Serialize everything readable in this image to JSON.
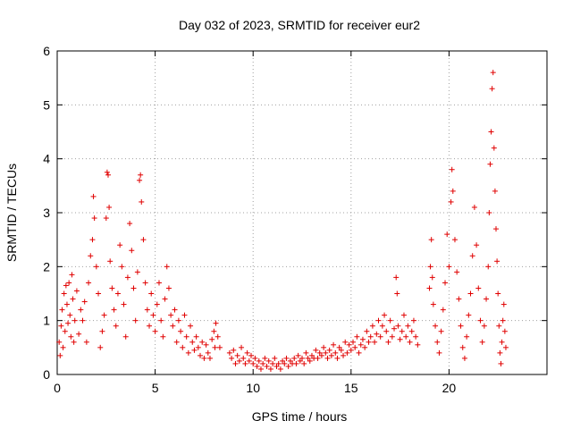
{
  "chart_data": {
    "type": "scatter",
    "title": "Day 032 of 2023, SRMTID for receiver eur2",
    "xlabel": "GPS time / hours",
    "ylabel": "SRMTID / TECUs",
    "xlim": [
      0,
      25
    ],
    "ylim": [
      0,
      6
    ],
    "xticks": [
      0,
      5,
      10,
      15,
      20
    ],
    "yticks": [
      0,
      1,
      2,
      3,
      4,
      5,
      6
    ],
    "grid": true,
    "marker": "+",
    "color": "#e00000",
    "series": [
      {
        "name": "SRMTID",
        "points": [
          [
            0.1,
            0.6
          ],
          [
            0.15,
            0.35
          ],
          [
            0.2,
            0.9
          ],
          [
            0.25,
            1.2
          ],
          [
            0.3,
            0.5
          ],
          [
            0.35,
            1.5
          ],
          [
            0.4,
            0.8
          ],
          [
            0.45,
            1.65
          ],
          [
            0.5,
            1.3
          ],
          [
            0.55,
            0.95
          ],
          [
            0.6,
            1.7
          ],
          [
            0.65,
            1.1
          ],
          [
            0.7,
            0.7
          ],
          [
            0.75,
            1.85
          ],
          [
            0.8,
            1.4
          ],
          [
            0.85,
            0.6
          ],
          [
            0.9,
            1.0
          ],
          [
            1.0,
            1.55
          ],
          [
            1.1,
            0.75
          ],
          [
            1.2,
            1.2
          ],
          [
            1.3,
            1.0
          ],
          [
            1.4,
            1.35
          ],
          [
            1.5,
            0.6
          ],
          [
            1.6,
            1.7
          ],
          [
            1.7,
            2.2
          ],
          [
            1.8,
            2.5
          ],
          [
            1.85,
            3.3
          ],
          [
            1.9,
            2.9
          ],
          [
            2.0,
            2.0
          ],
          [
            2.1,
            1.5
          ],
          [
            2.2,
            0.5
          ],
          [
            2.3,
            0.8
          ],
          [
            2.4,
            1.1
          ],
          [
            2.5,
            2.9
          ],
          [
            2.55,
            3.75
          ],
          [
            2.6,
            3.7
          ],
          [
            2.65,
            3.1
          ],
          [
            2.7,
            2.1
          ],
          [
            2.8,
            1.6
          ],
          [
            2.9,
            1.2
          ],
          [
            3.0,
            0.9
          ],
          [
            3.1,
            1.5
          ],
          [
            3.2,
            2.4
          ],
          [
            3.3,
            2.0
          ],
          [
            3.4,
            1.3
          ],
          [
            3.5,
            0.7
          ],
          [
            3.6,
            1.8
          ],
          [
            3.7,
            2.8
          ],
          [
            3.8,
            2.3
          ],
          [
            3.9,
            1.6
          ],
          [
            4.0,
            1.0
          ],
          [
            4.1,
            1.9
          ],
          [
            4.2,
            3.6
          ],
          [
            4.25,
            3.7
          ],
          [
            4.3,
            3.2
          ],
          [
            4.4,
            2.5
          ],
          [
            4.5,
            1.7
          ],
          [
            4.6,
            1.2
          ],
          [
            4.7,
            0.9
          ],
          [
            4.8,
            1.5
          ],
          [
            4.9,
            1.1
          ],
          [
            5.0,
            0.8
          ],
          [
            5.1,
            1.3
          ],
          [
            5.2,
            1.7
          ],
          [
            5.3,
            1.0
          ],
          [
            5.4,
            0.7
          ],
          [
            5.5,
            1.4
          ],
          [
            5.6,
            2.0
          ],
          [
            5.7,
            1.6
          ],
          [
            5.8,
            1.1
          ],
          [
            5.9,
            0.9
          ],
          [
            6.0,
            1.2
          ],
          [
            6.1,
            0.6
          ],
          [
            6.2,
            1.0
          ],
          [
            6.3,
            0.8
          ],
          [
            6.4,
            0.5
          ],
          [
            6.5,
            1.1
          ],
          [
            6.6,
            0.7
          ],
          [
            6.7,
            0.4
          ],
          [
            6.8,
            0.9
          ],
          [
            6.9,
            0.6
          ],
          [
            7.0,
            0.45
          ],
          [
            7.1,
            0.7
          ],
          [
            7.2,
            0.5
          ],
          [
            7.3,
            0.35
          ],
          [
            7.4,
            0.6
          ],
          [
            7.5,
            0.3
          ],
          [
            7.6,
            0.55
          ],
          [
            7.7,
            0.4
          ],
          [
            7.8,
            0.3
          ],
          [
            7.9,
            0.65
          ],
          [
            8.0,
            0.8
          ],
          [
            8.05,
            0.5
          ],
          [
            8.1,
            0.95
          ],
          [
            8.2,
            0.7
          ],
          [
            8.3,
            0.5
          ],
          [
            8.8,
            0.4
          ],
          [
            8.9,
            0.3
          ],
          [
            9.0,
            0.45
          ],
          [
            9.1,
            0.2
          ],
          [
            9.2,
            0.35
          ],
          [
            9.3,
            0.25
          ],
          [
            9.4,
            0.5
          ],
          [
            9.5,
            0.3
          ],
          [
            9.6,
            0.2
          ],
          [
            9.7,
            0.4
          ],
          [
            9.8,
            0.25
          ],
          [
            9.9,
            0.35
          ],
          [
            10.0,
            0.2
          ],
          [
            10.1,
            0.3
          ],
          [
            10.2,
            0.15
          ],
          [
            10.3,
            0.25
          ],
          [
            10.4,
            0.1
          ],
          [
            10.5,
            0.2
          ],
          [
            10.6,
            0.3
          ],
          [
            10.7,
            0.15
          ],
          [
            10.8,
            0.25
          ],
          [
            10.9,
            0.1
          ],
          [
            11.0,
            0.2
          ],
          [
            11.1,
            0.3
          ],
          [
            11.2,
            0.15
          ],
          [
            11.3,
            0.2
          ],
          [
            11.4,
            0.1
          ],
          [
            11.5,
            0.25
          ],
          [
            11.6,
            0.2
          ],
          [
            11.7,
            0.3
          ],
          [
            11.8,
            0.15
          ],
          [
            11.9,
            0.25
          ],
          [
            12.0,
            0.2
          ],
          [
            12.1,
            0.3
          ],
          [
            12.2,
            0.2
          ],
          [
            12.3,
            0.35
          ],
          [
            12.4,
            0.25
          ],
          [
            12.5,
            0.3
          ],
          [
            12.6,
            0.2
          ],
          [
            12.7,
            0.4
          ],
          [
            12.8,
            0.3
          ],
          [
            12.9,
            0.25
          ],
          [
            13.0,
            0.35
          ],
          [
            13.1,
            0.3
          ],
          [
            13.2,
            0.45
          ],
          [
            13.3,
            0.3
          ],
          [
            13.4,
            0.4
          ],
          [
            13.5,
            0.35
          ],
          [
            13.6,
            0.5
          ],
          [
            13.7,
            0.4
          ],
          [
            13.8,
            0.3
          ],
          [
            13.9,
            0.45
          ],
          [
            14.0,
            0.35
          ],
          [
            14.1,
            0.55
          ],
          [
            14.2,
            0.4
          ],
          [
            14.3,
            0.3
          ],
          [
            14.4,
            0.5
          ],
          [
            14.5,
            0.45
          ],
          [
            14.6,
            0.35
          ],
          [
            14.7,
            0.6
          ],
          [
            14.8,
            0.4
          ],
          [
            14.9,
            0.55
          ],
          [
            15.0,
            0.45
          ],
          [
            15.1,
            0.6
          ],
          [
            15.2,
            0.5
          ],
          [
            15.3,
            0.7
          ],
          [
            15.4,
            0.4
          ],
          [
            15.5,
            0.55
          ],
          [
            15.6,
            0.65
          ],
          [
            15.7,
            0.5
          ],
          [
            15.8,
            0.8
          ],
          [
            15.9,
            0.6
          ],
          [
            16.0,
            0.7
          ],
          [
            16.1,
            0.9
          ],
          [
            16.2,
            0.6
          ],
          [
            16.3,
            0.75
          ],
          [
            16.4,
            1.0
          ],
          [
            16.5,
            0.7
          ],
          [
            16.6,
            0.9
          ],
          [
            16.7,
            1.1
          ],
          [
            16.8,
            0.8
          ],
          [
            16.9,
            0.6
          ],
          [
            17.0,
            1.0
          ],
          [
            17.1,
            0.7
          ],
          [
            17.2,
            0.85
          ],
          [
            17.3,
            1.8
          ],
          [
            17.35,
            1.5
          ],
          [
            17.4,
            0.9
          ],
          [
            17.5,
            0.65
          ],
          [
            17.6,
            0.8
          ],
          [
            17.7,
            1.1
          ],
          [
            17.8,
            0.7
          ],
          [
            17.9,
            0.9
          ],
          [
            18.0,
            0.6
          ],
          [
            18.1,
            0.8
          ],
          [
            18.2,
            1.0
          ],
          [
            18.3,
            0.7
          ],
          [
            18.4,
            0.55
          ],
          [
            19.0,
            1.6
          ],
          [
            19.05,
            2.0
          ],
          [
            19.1,
            2.5
          ],
          [
            19.15,
            1.8
          ],
          [
            19.2,
            1.3
          ],
          [
            19.3,
            0.9
          ],
          [
            19.4,
            0.6
          ],
          [
            19.5,
            0.4
          ],
          [
            19.6,
            0.8
          ],
          [
            19.7,
            1.2
          ],
          [
            19.8,
            1.7
          ],
          [
            19.9,
            2.6
          ],
          [
            20.0,
            2.0
          ],
          [
            20.1,
            3.2
          ],
          [
            20.15,
            3.8
          ],
          [
            20.2,
            3.4
          ],
          [
            20.3,
            2.5
          ],
          [
            20.4,
            1.9
          ],
          [
            20.5,
            1.4
          ],
          [
            20.6,
            0.9
          ],
          [
            20.7,
            0.5
          ],
          [
            20.8,
            0.3
          ],
          [
            20.9,
            0.7
          ],
          [
            21.0,
            1.1
          ],
          [
            21.1,
            1.5
          ],
          [
            21.2,
            2.2
          ],
          [
            21.3,
            3.1
          ],
          [
            21.4,
            2.4
          ],
          [
            21.5,
            1.6
          ],
          [
            21.6,
            1.0
          ],
          [
            21.7,
            0.6
          ],
          [
            21.8,
            0.9
          ],
          [
            21.9,
            1.4
          ],
          [
            22.0,
            2.0
          ],
          [
            22.05,
            3.0
          ],
          [
            22.1,
            3.9
          ],
          [
            22.15,
            4.5
          ],
          [
            22.2,
            5.3
          ],
          [
            22.25,
            5.6
          ],
          [
            22.3,
            4.2
          ],
          [
            22.35,
            3.4
          ],
          [
            22.4,
            2.7
          ],
          [
            22.45,
            2.1
          ],
          [
            22.5,
            1.5
          ],
          [
            22.55,
            0.9
          ],
          [
            22.6,
            0.4
          ],
          [
            22.65,
            0.2
          ],
          [
            22.7,
            0.6
          ],
          [
            22.75,
            1.0
          ],
          [
            22.8,
            1.3
          ],
          [
            22.85,
            0.8
          ],
          [
            22.9,
            0.5
          ]
        ]
      }
    ]
  }
}
